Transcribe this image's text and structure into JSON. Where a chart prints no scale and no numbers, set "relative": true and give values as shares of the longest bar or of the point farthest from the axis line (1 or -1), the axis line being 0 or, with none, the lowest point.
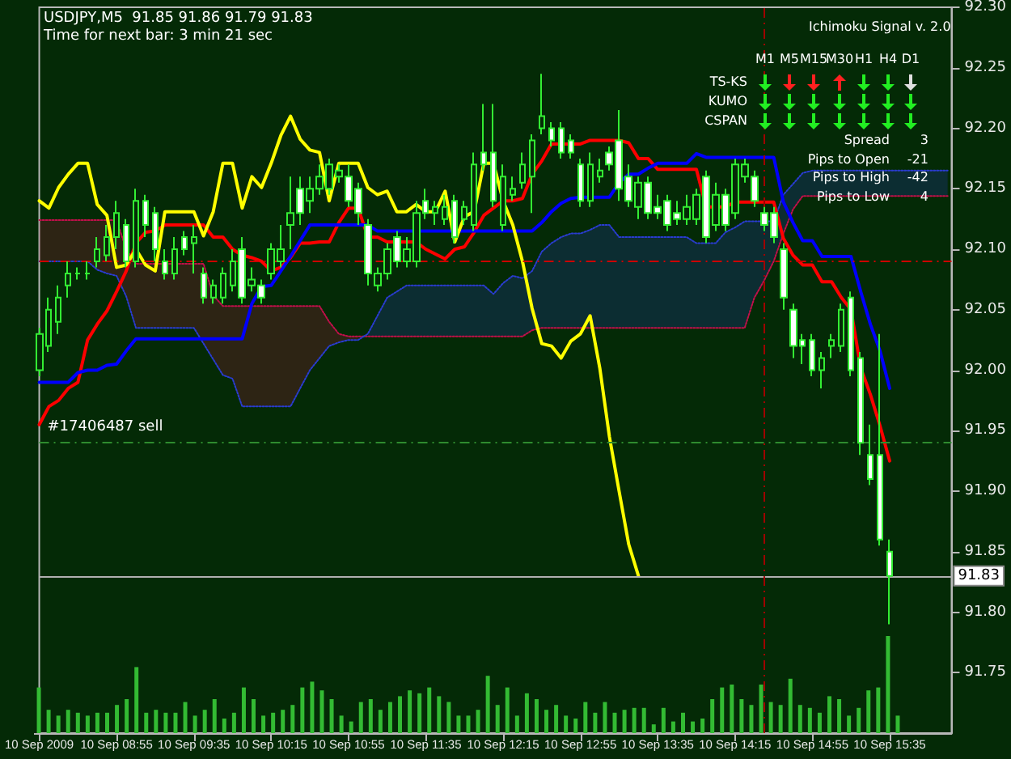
{
  "chart_data": [
    {
      "type": "candlestick",
      "title": "USDJPY,M5  91.85 91.86 91.79 91.83",
      "subtitle": "Time for next bar: 3 min 21 sec",
      "annotations": [
        "Ichimoku Signal v. 2.0",
        "M1",
        "M5",
        "M15",
        "M30",
        "H1",
        "H4",
        "D1",
        "TS-KS",
        "KUMO",
        "CSPAN",
        "Spread",
        "3",
        "Pips to Open",
        "-21",
        "Pips to High",
        "-42",
        "Pips to Low",
        "4"
      ],
      "x": [
        "2009-09-10T08:15",
        "2009-09-10T08:20",
        "2009-09-10T08:25",
        "2009-09-10T08:30",
        "2009-09-10T08:35",
        "2009-09-10T08:40",
        "2009-09-10T08:45",
        "2009-09-10T08:50",
        "2009-09-10T08:55",
        "2009-09-10T09:00",
        "2009-09-10T09:05",
        "2009-09-10T09:10",
        "2009-09-10T09:15",
        "2009-09-10T09:20",
        "2009-09-10T09:25",
        "2009-09-10T09:30",
        "2009-09-10T09:35",
        "2009-09-10T09:40",
        "2009-09-10T09:45",
        "2009-09-10T09:50",
        "2009-09-10T09:55",
        "2009-09-10T10:00",
        "2009-09-10T10:05",
        "2009-09-10T10:10",
        "2009-09-10T10:15",
        "2009-09-10T10:20",
        "2009-09-10T10:25",
        "2009-09-10T10:30",
        "2009-09-10T10:35",
        "2009-09-10T10:40",
        "2009-09-10T10:45",
        "2009-09-10T10:50",
        "2009-09-10T10:55",
        "2009-09-10T11:00",
        "2009-09-10T11:05",
        "2009-09-10T11:10",
        "2009-09-10T11:15",
        "2009-09-10T11:20",
        "2009-09-10T11:25",
        "2009-09-10T11:30",
        "2009-09-10T11:35",
        "2009-09-10T11:40",
        "2009-09-10T11:45",
        "2009-09-10T11:50",
        "2009-09-10T11:55",
        "2009-09-10T12:00",
        "2009-09-10T12:05",
        "2009-09-10T12:10",
        "2009-09-10T12:15",
        "2009-09-10T12:20",
        "2009-09-10T12:25",
        "2009-09-10T12:30",
        "2009-09-10T12:35",
        "2009-09-10T12:40",
        "2009-09-10T12:45",
        "2009-09-10T12:50",
        "2009-09-10T12:55",
        "2009-09-10T13:00",
        "2009-09-10T13:05",
        "2009-09-10T13:10",
        "2009-09-10T13:15",
        "2009-09-10T13:20",
        "2009-09-10T13:25",
        "2009-09-10T13:30",
        "2009-09-10T13:35",
        "2009-09-10T13:40",
        "2009-09-10T13:45",
        "2009-09-10T13:50",
        "2009-09-10T13:55",
        "2009-09-10T14:00",
        "2009-09-10T14:05",
        "2009-09-10T14:10",
        "2009-09-10T14:15",
        "2009-09-10T14:20",
        "2009-09-10T14:25",
        "2009-09-10T14:30",
        "2009-09-10T14:35",
        "2009-09-10T14:40",
        "2009-09-10T14:45",
        "2009-09-10T14:50",
        "2009-09-10T14:55",
        "2009-09-10T15:00",
        "2009-09-10T15:05",
        "2009-09-10T15:10",
        "2009-09-10T15:15",
        "2009-09-10T15:20",
        "2009-09-10T15:25",
        "2009-09-10T15:30",
        "2009-09-10T15:35",
        "2009-09-10T15:40",
        "2009-09-10T15:45",
        "2009-09-10T15:50",
        "2009-09-10T15:55",
        "2009-09-10T16:00",
        "2009-09-10T16:05"
      ],
      "ohlc": [
        [
          92.0,
          92.035,
          91.995,
          92.03
        ],
        [
          92.02,
          92.06,
          92.015,
          92.05
        ],
        [
          92.04,
          92.07,
          92.03,
          92.06
        ],
        [
          92.07,
          92.09,
          92.06,
          92.08
        ],
        [
          92.08,
          92.085,
          92.075,
          92.08
        ],
        [
          92.08,
          92.09,
          92.075,
          92.08
        ],
        [
          92.09,
          92.11,
          92.085,
          92.1
        ],
        [
          92.095,
          92.12,
          92.09,
          92.11
        ],
        [
          92.11,
          92.14,
          92.1,
          92.13
        ],
        [
          92.12,
          92.125,
          92.085,
          92.09
        ],
        [
          92.09,
          92.15,
          92.085,
          92.14
        ],
        [
          92.14,
          92.145,
          92.11,
          92.12
        ],
        [
          92.13,
          92.135,
          92.09,
          92.1
        ],
        [
          92.09,
          92.1,
          92.075,
          92.08
        ],
        [
          92.08,
          92.11,
          92.075,
          92.1
        ],
        [
          92.11,
          92.115,
          92.095,
          92.1
        ],
        [
          92.105,
          92.12,
          92.08,
          92.11
        ],
        [
          92.08,
          92.085,
          92.055,
          92.06
        ],
        [
          92.06,
          92.075,
          92.055,
          92.07
        ],
        [
          92.06,
          92.085,
          92.055,
          92.08
        ],
        [
          92.07,
          92.1,
          92.065,
          92.09
        ],
        [
          92.1,
          92.11,
          92.055,
          92.06
        ],
        [
          92.07,
          92.085,
          92.065,
          92.075
        ],
        [
          92.07,
          92.075,
          92.055,
          92.06
        ],
        [
          92.08,
          92.105,
          92.075,
          92.1
        ],
        [
          92.09,
          92.12,
          92.085,
          92.1
        ],
        [
          92.12,
          92.16,
          92.1,
          92.13
        ],
        [
          92.15,
          92.16,
          92.12,
          92.13
        ],
        [
          92.14,
          92.16,
          92.13,
          92.15
        ],
        [
          92.15,
          92.17,
          92.145,
          92.16
        ],
        [
          92.15,
          92.175,
          92.145,
          92.17
        ],
        [
          92.16,
          92.17,
          92.155,
          92.165
        ],
        [
          92.16,
          92.17,
          92.135,
          92.14
        ],
        [
          92.15,
          92.155,
          92.12,
          92.13
        ],
        [
          92.12,
          92.125,
          92.07,
          92.08
        ],
        [
          92.07,
          92.085,
          92.065,
          92.08
        ],
        [
          92.08,
          92.105,
          92.075,
          92.1
        ],
        [
          92.11,
          92.115,
          92.085,
          92.09
        ],
        [
          92.09,
          92.11,
          92.085,
          92.1
        ],
        [
          92.09,
          92.14,
          92.085,
          92.13
        ],
        [
          92.14,
          92.15,
          92.125,
          92.13
        ],
        [
          92.13,
          92.14,
          92.12,
          92.135
        ],
        [
          92.125,
          92.145,
          92.12,
          92.135
        ],
        [
          92.14,
          92.145,
          92.105,
          92.11
        ],
        [
          92.125,
          92.14,
          92.12,
          92.135
        ],
        [
          92.12,
          92.18,
          92.115,
          92.17
        ],
        [
          92.18,
          92.22,
          92.165,
          92.17
        ],
        [
          92.18,
          92.22,
          92.135,
          92.14
        ],
        [
          92.12,
          92.17,
          92.115,
          92.16
        ],
        [
          92.145,
          92.16,
          92.14,
          92.15
        ],
        [
          92.155,
          92.18,
          92.15,
          92.17
        ],
        [
          92.16,
          92.195,
          92.13,
          92.19
        ],
        [
          92.2,
          92.245,
          92.195,
          92.21
        ],
        [
          92.2,
          92.205,
          92.185,
          92.19
        ],
        [
          92.2,
          92.205,
          92.175,
          92.18
        ],
        [
          92.19,
          92.195,
          92.175,
          92.18
        ],
        [
          92.17,
          92.175,
          92.135,
          92.14
        ],
        [
          92.14,
          92.18,
          92.135,
          92.17
        ],
        [
          92.16,
          92.175,
          92.155,
          92.165
        ],
        [
          92.18,
          92.185,
          92.165,
          92.17
        ],
        [
          92.19,
          92.215,
          92.14,
          92.15
        ],
        [
          92.16,
          92.17,
          92.135,
          92.14
        ],
        [
          92.135,
          92.16,
          92.125,
          92.155
        ],
        [
          92.155,
          92.16,
          92.125,
          92.13
        ],
        [
          92.135,
          92.145,
          92.125,
          92.13
        ],
        [
          92.14,
          92.145,
          92.115,
          92.12
        ],
        [
          92.13,
          92.14,
          92.12,
          92.125
        ],
        [
          92.125,
          92.145,
          92.12,
          92.135
        ],
        [
          92.125,
          92.15,
          92.12,
          92.145
        ],
        [
          92.16,
          92.165,
          92.105,
          92.11
        ],
        [
          92.12,
          92.155,
          92.115,
          92.145
        ],
        [
          92.145,
          92.15,
          92.115,
          92.12
        ],
        [
          92.13,
          92.175,
          92.125,
          92.17
        ],
        [
          92.16,
          92.175,
          92.155,
          92.17
        ],
        [
          92.16,
          92.165,
          92.135,
          92.14
        ],
        [
          92.13,
          92.135,
          92.115,
          92.12
        ],
        [
          92.13,
          92.135,
          92.105,
          92.11
        ],
        [
          92.1,
          92.105,
          92.05,
          92.06
        ],
        [
          92.05,
          92.055,
          92.01,
          92.02
        ],
        [
          92.025,
          92.03,
          92.005,
          92.02
        ],
        [
          92.025,
          92.03,
          91.995,
          92.0
        ],
        [
          92.0,
          92.015,
          91.985,
          92.01
        ],
        [
          92.02,
          92.03,
          92.01,
          92.025
        ],
        [
          92.02,
          92.055,
          92.015,
          92.05
        ],
        [
          92.06,
          92.065,
          91.995,
          92.0
        ],
        [
          92.01,
          92.015,
          91.93,
          91.94
        ],
        [
          91.93,
          91.955,
          91.905,
          91.91
        ],
        [
          91.93,
          92.03,
          91.855,
          91.86
        ],
        [
          91.85,
          91.86,
          91.79,
          91.83
        ],
        null,
        null,
        null,
        null,
        null,
        null
      ],
      "series": [
        {
          "type": "line",
          "color": "#ff0000",
          "line_style": "solid",
          "values": [
            91.955,
            91.97,
            91.975,
            91.985,
            91.99,
            92.025,
            92.038,
            92.049,
            92.065,
            92.082,
            92.105,
            92.114,
            92.115,
            92.12,
            92.12,
            92.12,
            92.12,
            92.12,
            92.11,
            92.11,
            92.1,
            92.095,
            92.093,
            92.09,
            92.082,
            92.085,
            92.093,
            92.105,
            92.105,
            92.106,
            92.106,
            92.122,
            92.134,
            92.134,
            92.11,
            92.11,
            92.106,
            92.106,
            92.106,
            92.106,
            92.1,
            92.096,
            92.092,
            92.1,
            92.102,
            92.114,
            92.128,
            92.134,
            92.14,
            92.14,
            92.142,
            92.162,
            92.173,
            92.187,
            92.187,
            92.187,
            92.187,
            92.19,
            92.19,
            92.19,
            92.19,
            92.188,
            92.175,
            92.175,
            92.166,
            92.166,
            92.166,
            92.166,
            92.166,
            92.135,
            92.135,
            92.135,
            92.139,
            92.139,
            92.139,
            92.139,
            92.139,
            92.109,
            92.095,
            92.087,
            92.087,
            92.073,
            92.073,
            92.06,
            92.05,
            92.002,
            91.98,
            91.954,
            91.925,
            null,
            null,
            null,
            null,
            null,
            null
          ]
        },
        {
          "type": "line",
          "color": "#0000ff",
          "line_style": "solid",
          "values": [
            91.99,
            91.99,
            91.99,
            91.99,
            91.998,
            92.0,
            92.0,
            92.004,
            92.005,
            92.016,
            92.026,
            92.026,
            92.026,
            92.026,
            92.026,
            92.026,
            92.026,
            92.026,
            92.026,
            92.026,
            92.026,
            92.026,
            92.055,
            92.069,
            92.07,
            92.082,
            92.094,
            92.107,
            92.12,
            92.12,
            92.12,
            92.12,
            92.12,
            92.12,
            92.12,
            92.115,
            92.115,
            92.115,
            92.115,
            92.115,
            92.115,
            92.115,
            92.115,
            92.115,
            92.115,
            92.115,
            92.115,
            92.115,
            92.115,
            92.115,
            92.115,
            92.115,
            92.122,
            92.131,
            92.138,
            92.142,
            92.143,
            92.143,
            92.143,
            92.143,
            92.155,
            92.162,
            92.162,
            92.167,
            92.171,
            92.171,
            92.171,
            92.171,
            92.179,
            92.176,
            92.176,
            92.176,
            92.176,
            92.176,
            92.176,
            92.176,
            92.176,
            92.139,
            92.122,
            92.107,
            92.107,
            92.094,
            92.094,
            92.094,
            92.094,
            92.065,
            92.038,
            92.016,
            91.985,
            null,
            null,
            null,
            null,
            null,
            null
          ]
        },
        {
          "type": "line",
          "color": "#ffff00",
          "line_style": "solid",
          "values": [
            92.14,
            92.134,
            92.151,
            92.162,
            92.171,
            92.171,
            92.137,
            92.128,
            92.085,
            92.087,
            92.1,
            92.087,
            92.082,
            92.131,
            92.131,
            92.131,
            92.131,
            92.111,
            92.131,
            92.171,
            92.171,
            92.134,
            92.16,
            92.151,
            92.171,
            92.194,
            92.21,
            92.191,
            92.182,
            92.18,
            92.14,
            92.171,
            92.171,
            92.171,
            92.151,
            92.145,
            92.148,
            92.131,
            92.131,
            92.137,
            92.131,
            92.131,
            92.148,
            92.106,
            92.127,
            92.131,
            92.171,
            92.171,
            92.14,
            92.12,
            92.09,
            92.051,
            92.022,
            92.02,
            92.01,
            92.024,
            92.03,
            92.045,
            92.002,
            91.945,
            91.9,
            91.856,
            91.83,
            null,
            null,
            null,
            null,
            null,
            null,
            null,
            null,
            null,
            null,
            null,
            null,
            null,
            null,
            null,
            null,
            null,
            null,
            null,
            null,
            null,
            null,
            null,
            null,
            null,
            null,
            null,
            null,
            null,
            null,
            null,
            null
          ]
        },
        {
          "type": "line",
          "color": "#c0104a",
          "line_style": "dotted",
          "values": [
            92.124,
            92.124,
            92.124,
            92.124,
            92.124,
            92.124,
            92.124,
            92.124,
            92.124,
            92.1,
            92.088,
            92.088,
            92.088,
            92.088,
            92.088,
            92.088,
            92.088,
            92.088,
            92.062,
            92.053,
            92.053,
            92.053,
            92.053,
            92.053,
            92.053,
            92.053,
            92.053,
            92.053,
            92.053,
            92.053,
            92.04,
            92.03,
            92.028,
            92.028,
            92.028,
            92.028,
            92.028,
            92.028,
            92.028,
            92.028,
            92.028,
            92.028,
            92.028,
            92.028,
            92.028,
            92.028,
            92.028,
            92.028,
            92.028,
            92.028,
            92.028,
            92.033,
            92.035,
            92.035,
            92.035,
            92.035,
            92.035,
            92.035,
            92.035,
            92.035,
            92.035,
            92.035,
            92.035,
            92.035,
            92.035,
            92.035,
            92.035,
            92.035,
            92.035,
            92.035,
            92.035,
            92.035,
            92.035,
            92.035,
            92.06,
            92.074,
            92.09,
            92.113,
            92.133,
            92.144,
            92.144,
            92.144,
            92.144,
            92.144,
            92.144,
            92.144,
            92.144,
            92.144,
            92.144,
            92.144,
            92.144,
            92.144,
            92.144,
            92.144,
            92.144
          ],
          "lower": [
            92.09,
            92.09,
            92.09,
            92.09,
            92.09,
            92.09,
            92.083,
            92.08,
            92.078,
            92.061,
            92.035,
            92.035,
            92.035,
            92.035,
            92.035,
            92.035,
            92.035,
            92.022,
            92.009,
            91.996,
            91.993,
            91.97,
            91.97,
            91.97,
            91.97,
            91.97,
            91.97,
            91.985,
            92.0,
            92.01,
            92.02,
            92.023,
            92.025,
            92.025,
            null,
            null,
            null,
            null,
            null,
            null,
            null,
            null,
            null,
            null,
            null,
            null,
            null,
            null,
            null,
            null,
            null,
            null,
            null,
            null,
            null,
            null,
            null,
            null,
            null,
            null,
            null,
            null,
            null,
            null,
            null,
            null,
            null,
            null,
            null,
            null,
            null,
            null,
            null,
            null,
            null,
            null,
            null,
            null,
            null,
            null,
            null,
            null,
            null,
            null,
            null,
            null,
            null,
            null,
            null,
            null,
            null,
            null,
            null,
            null,
            null
          ],
          "upper": [
            92.124,
            92.124,
            92.124,
            92.124,
            92.124,
            92.124,
            92.124,
            92.124,
            92.124,
            92.1,
            92.088,
            92.088,
            92.088,
            92.088,
            92.088,
            92.088,
            92.088,
            92.088,
            92.062,
            92.053,
            92.053,
            92.053,
            92.053,
            92.053,
            92.053,
            92.053,
            92.053,
            92.053,
            92.053,
            92.053,
            92.04,
            92.03,
            92.028,
            92.028,
            null,
            null,
            null,
            null,
            null,
            null,
            null,
            null,
            null,
            null,
            null,
            null,
            null,
            null,
            null,
            null,
            null,
            null,
            null,
            null,
            null,
            null,
            null,
            null,
            null,
            null,
            null,
            null,
            null,
            null,
            null,
            null,
            null,
            null,
            null,
            null,
            null,
            null,
            null,
            null,
            null,
            null,
            null,
            null,
            null,
            null,
            null,
            null,
            null,
            null,
            null,
            null,
            null,
            null,
            null,
            null,
            null,
            null,
            null,
            null,
            null
          ]
        },
        {
          "type": "line",
          "color": "#2a3cd0",
          "line_style": "dotted",
          "values": [
            92.09,
            92.09,
            92.09,
            92.09,
            92.09,
            92.09,
            92.083,
            92.08,
            92.078,
            92.061,
            92.035,
            92.035,
            92.035,
            92.035,
            92.035,
            92.035,
            92.035,
            92.022,
            92.009,
            91.996,
            91.993,
            91.97,
            91.97,
            91.97,
            91.97,
            91.97,
            91.97,
            91.985,
            92.0,
            92.01,
            92.02,
            92.023,
            92.025,
            92.025,
            92.03,
            92.045,
            92.06,
            92.065,
            92.07,
            92.07,
            92.07,
            92.07,
            92.07,
            92.07,
            92.07,
            92.07,
            92.07,
            92.063,
            92.072,
            92.078,
            92.076,
            92.082,
            92.098,
            92.105,
            92.11,
            92.113,
            92.113,
            92.116,
            92.12,
            92.12,
            92.11,
            92.11,
            92.11,
            92.11,
            92.11,
            92.11,
            92.11,
            92.11,
            92.105,
            92.105,
            92.105,
            92.114,
            92.118,
            92.123,
            92.123,
            92.123,
            92.123,
            92.145,
            92.154,
            92.163,
            92.165,
            92.165,
            92.165,
            92.165,
            92.165,
            92.165,
            92.165,
            92.165,
            92.165,
            92.165,
            92.165,
            92.165,
            92.165,
            92.165,
            92.165
          ],
          "lower": [
            null,
            null,
            null,
            null,
            null,
            null,
            null,
            null,
            null,
            null,
            null,
            null,
            null,
            null,
            null,
            null,
            null,
            null,
            null,
            null,
            null,
            null,
            null,
            null,
            null,
            null,
            null,
            null,
            null,
            null,
            null,
            null,
            null,
            null,
            92.028,
            92.028,
            92.028,
            92.028,
            92.028,
            92.028,
            92.028,
            92.028,
            92.028,
            92.028,
            92.028,
            92.028,
            92.028,
            92.028,
            92.028,
            92.028,
            92.028,
            92.033,
            92.035,
            92.035,
            92.035,
            92.035,
            92.035,
            92.035,
            92.035,
            92.035,
            92.035,
            92.035,
            92.035,
            92.035,
            92.035,
            92.035,
            92.035,
            92.035,
            92.035,
            92.035,
            92.035,
            92.035,
            92.035,
            92.035,
            92.06,
            92.074,
            92.09,
            92.113,
            92.133,
            92.144,
            92.144,
            92.144,
            92.144,
            92.144,
            92.144,
            92.144,
            92.144,
            92.144,
            92.144,
            92.144,
            92.144,
            92.144,
            92.144,
            92.144,
            92.144
          ],
          "upper": [
            null,
            null,
            null,
            null,
            null,
            null,
            null,
            null,
            null,
            null,
            null,
            null,
            null,
            null,
            null,
            null,
            null,
            null,
            null,
            null,
            null,
            null,
            null,
            null,
            null,
            null,
            null,
            null,
            null,
            null,
            null,
            null,
            null,
            null,
            92.03,
            92.045,
            92.06,
            92.065,
            92.07,
            92.07,
            92.07,
            92.07,
            92.07,
            92.07,
            92.07,
            92.07,
            92.07,
            92.063,
            92.072,
            92.078,
            92.076,
            92.082,
            92.098,
            92.105,
            92.11,
            92.113,
            92.113,
            92.116,
            92.12,
            92.12,
            92.11,
            92.11,
            92.11,
            92.11,
            92.11,
            92.11,
            92.11,
            92.11,
            92.105,
            92.105,
            92.105,
            92.114,
            92.118,
            92.123,
            92.123,
            92.123,
            92.123,
            92.145,
            92.154,
            92.163,
            92.165,
            92.165,
            92.165,
            92.165,
            92.165,
            92.165,
            92.165,
            92.165,
            92.165,
            92.165,
            92.165,
            92.165,
            92.165,
            92.165,
            92.165
          ]
        }
      ],
      "xlim": [
        "2009-09-10T08:15",
        "2009-09-10T16:07"
      ],
      "xticks": [
        {
          "value": "2009-09-10T08:15",
          "label": "10 Sep 2009"
        },
        {
          "value": "2009-09-10T08:55",
          "label": "10 Sep 08:55"
        },
        {
          "value": "2009-09-10T09:35",
          "label": "10 Sep 09:35"
        },
        {
          "value": "2009-09-10T10:15",
          "label": "10 Sep 10:15"
        },
        {
          "value": "2009-09-10T10:55",
          "label": "10 Sep 10:55"
        },
        {
          "value": "2009-09-10T11:35",
          "label": "10 Sep 11:35"
        },
        {
          "value": "2009-09-10T12:15",
          "label": "10 Sep 12:15"
        },
        {
          "value": "2009-09-10T12:55",
          "label": "10 Sep 12:55"
        },
        {
          "value": "2009-09-10T13:35",
          "label": "10 Sep 13:35"
        },
        {
          "value": "2009-09-10T14:15",
          "label": "10 Sep 14:15"
        },
        {
          "value": "2009-09-10T14:55",
          "label": "10 Sep 14:55"
        },
        {
          "value": "2009-09-10T15:35",
          "label": "10 Sep 15:35"
        }
      ],
      "ylim": [
        91.7,
        92.3
      ],
      "yticks": [
        91.75,
        {
          "value": 91.8,
          "label": "91.80"
        },
        91.85,
        {
          "value": 91.9,
          "label": "91.90"
        },
        91.95,
        {
          "value": 92.0,
          "label": "92.00"
        },
        92.05,
        {
          "value": 92.1,
          "label": "92.10"
        },
        92.15,
        {
          "value": 92.2,
          "label": "92.20"
        },
        92.25,
        {
          "value": 92.3,
          "label": "92.30"
        }
      ],
      "ref_lines": [
        {
          "axis": "y",
          "value": 92.09,
          "color": "#cc0000",
          "line_style": "dashed"
        },
        {
          "axis": "y",
          "value": 91.94,
          "label": "#17406487 sell",
          "color": "#2e8b2e",
          "line_style": "dashed"
        },
        {
          "axis": "y",
          "value": 91.83,
          "label": "91.83",
          "color": "#b0b0b0",
          "line_style": "solid"
        },
        {
          "axis": "x",
          "value": "2009-09-10T14:30",
          "color": "#a00000",
          "line_style": "dashed"
        }
      ]
    },
    {
      "type": "bar",
      "relative": true,
      "color": "#33bb33",
      "tick_labels": false,
      "categories": [
        null,
        null,
        null,
        null,
        null,
        null,
        null,
        null,
        null,
        null,
        null,
        null,
        null,
        null,
        null,
        null,
        null,
        null,
        null,
        null,
        null,
        null,
        null,
        null,
        null,
        null,
        null,
        null,
        null,
        null,
        null,
        null,
        null,
        null,
        null,
        null,
        null,
        null,
        null,
        null,
        null,
        null,
        null,
        null,
        null,
        null,
        null,
        null,
        null,
        null,
        null,
        null,
        null,
        null,
        null,
        null,
        null,
        null,
        null,
        null,
        null,
        null,
        null,
        null,
        null,
        null,
        null,
        null,
        null,
        null,
        null,
        null,
        null,
        null,
        null,
        null,
        null,
        null,
        null,
        null,
        null,
        null,
        null,
        null,
        null,
        null,
        null,
        null,
        null
      ],
      "values": [
        0.47,
        0.24,
        0.18,
        0.24,
        0.21,
        0.18,
        0.21,
        0.21,
        0.29,
        0.35,
        0.68,
        0.21,
        0.24,
        0.21,
        0.21,
        0.32,
        0.18,
        0.24,
        0.35,
        0.15,
        0.21,
        0.47,
        0.35,
        0.18,
        0.21,
        0.24,
        0.29,
        0.47,
        0.53,
        0.44,
        0.35,
        0.18,
        0.12,
        0.32,
        0.35,
        0.24,
        0.32,
        0.38,
        0.44,
        0.41,
        0.47,
        0.38,
        0.32,
        0.18,
        0.18,
        0.24,
        0.59,
        0.29,
        0.47,
        0.18,
        0.41,
        0.35,
        0.24,
        0.29,
        0.18,
        0.15,
        0.32,
        0.21,
        0.32,
        0.21,
        0.24,
        0.26,
        0.26,
        0.09,
        0.26,
        0.12,
        0.21,
        0.12,
        0.15,
        0.35,
        0.47,
        0.5,
        0.35,
        0.29,
        0.5,
        0.32,
        0.29,
        0.56,
        0.29,
        0.26,
        0.21,
        0.38,
        0.35,
        0.18,
        0.26,
        0.44,
        0.47,
        1,
        0.18
      ]
    }
  ]
}
